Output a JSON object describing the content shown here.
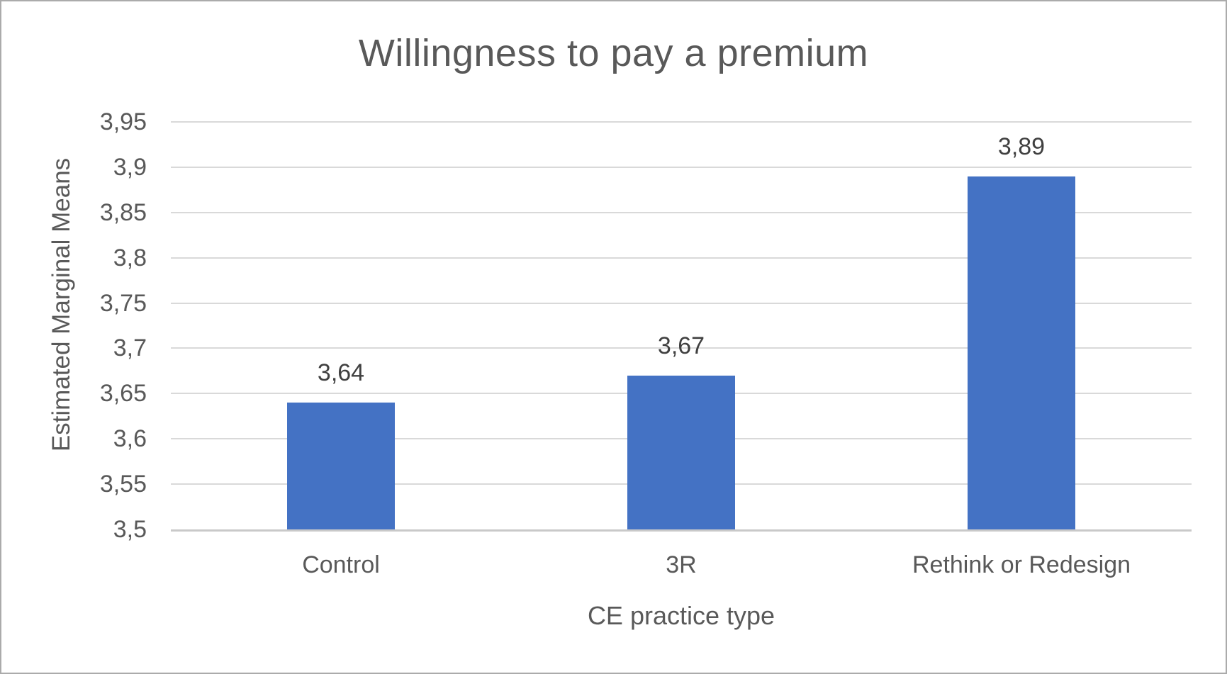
{
  "chart_data": {
    "type": "bar",
    "title": "Willingness to pay a premium",
    "xlabel": "CE practice type",
    "ylabel": "Estimated Marginal Means",
    "categories": [
      "Control",
      "3R",
      "Rethink or Redesign"
    ],
    "values": [
      3.64,
      3.67,
      3.89
    ],
    "data_labels": [
      "3,64",
      "3,67",
      "3,89"
    ],
    "ylim": [
      3.5,
      3.95
    ],
    "y_major_unit": 0.05,
    "y_ticks": [
      {
        "value": 3.95,
        "label": "3,95"
      },
      {
        "value": 3.9,
        "label": "3,9"
      },
      {
        "value": 3.85,
        "label": "3,85"
      },
      {
        "value": 3.8,
        "label": "3,8"
      },
      {
        "value": 3.75,
        "label": "3,75"
      },
      {
        "value": 3.7,
        "label": "3,7"
      },
      {
        "value": 3.65,
        "label": "3,65"
      },
      {
        "value": 3.6,
        "label": "3,6"
      },
      {
        "value": 3.55,
        "label": "3,55"
      },
      {
        "value": 3.5,
        "label": "3,5"
      }
    ],
    "grid": true,
    "legend": false,
    "decimal_separator": ","
  },
  "colors": {
    "bar": "#4472c4",
    "title_text": "#595959",
    "axis_text": "#595959",
    "data_label_text": "#404040",
    "gridline": "#d9d9d9",
    "axis_line": "#c9c9c9",
    "canvas_border": "#ababab",
    "background": "#ffffff"
  }
}
